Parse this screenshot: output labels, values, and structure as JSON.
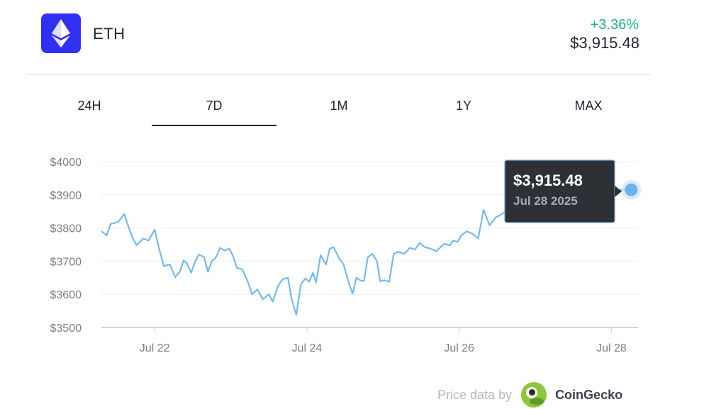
{
  "asset": {
    "symbol": "ETH",
    "logo_icon": "ethereum-icon",
    "change": "+3.36%",
    "price": "$3,915.48",
    "colors": {
      "logo_bg": "#2f30f0",
      "positive": "#1db082",
      "line": "#79b8e8"
    }
  },
  "tabs": [
    {
      "label": "24H",
      "active": false
    },
    {
      "label": "7D",
      "active": true
    },
    {
      "label": "1M",
      "active": false
    },
    {
      "label": "1Y",
      "active": false
    },
    {
      "label": "MAX",
      "active": false
    }
  ],
  "tooltip": {
    "price": "$3,915.48",
    "date": "Jul 28 2025"
  },
  "footer": {
    "credit": "Price data by",
    "brand": "CoinGecko",
    "brand_icon": "coingecko-icon"
  },
  "chart_data": {
    "type": "line",
    "grid": true,
    "ylim": [
      3500,
      4000
    ],
    "y_ticks": [
      "$4000",
      "$3900",
      "$3800",
      "$3700",
      "$3600",
      "$3500"
    ],
    "x_ticks": [
      "Jul 22",
      "Jul 24",
      "Jul 26",
      "Jul 28"
    ],
    "x_tick_days": [
      1,
      3,
      5,
      7
    ],
    "xlim": [
      0.3,
      7.35
    ],
    "series": [
      {
        "x": [
          0.3,
          0.37,
          0.42,
          0.52,
          0.6,
          0.65,
          0.7,
          0.76,
          0.85,
          0.92,
          1.0,
          1.05,
          1.12,
          1.2,
          1.27,
          1.33,
          1.38,
          1.42,
          1.48,
          1.52,
          1.58,
          1.65,
          1.7,
          1.75,
          1.8,
          1.86,
          1.92,
          1.98,
          2.03,
          2.08,
          2.15,
          2.22,
          2.28,
          2.35,
          2.42,
          2.5,
          2.55,
          2.62,
          2.68,
          2.75,
          2.8,
          2.86,
          2.92,
          2.98,
          3.03,
          3.08,
          3.12,
          3.18,
          3.25,
          3.3,
          3.35,
          3.42,
          3.48,
          3.55,
          3.6,
          3.65,
          3.7,
          3.75,
          3.8,
          3.86,
          3.92,
          3.96,
          4.02,
          4.08,
          4.14,
          4.2,
          4.28,
          4.35,
          4.42,
          4.48,
          4.55,
          4.62,
          4.7,
          4.8,
          4.88,
          4.92,
          4.98,
          5.03,
          5.1,
          5.18,
          5.25,
          5.32,
          5.4,
          5.48,
          5.55,
          5.62,
          5.7,
          5.8,
          5.9,
          5.98,
          6.05,
          6.12,
          6.2,
          6.28,
          6.36,
          6.45,
          6.52,
          6.56,
          6.6,
          6.65,
          6.7,
          6.78,
          6.86,
          6.94,
          7.0,
          7.05,
          7.1,
          7.15,
          7.2,
          7.26
        ],
        "y": [
          3790,
          3778,
          3812,
          3818,
          3842,
          3808,
          3775,
          3748,
          3768,
          3762,
          3795,
          3745,
          3685,
          3690,
          3652,
          3668,
          3702,
          3695,
          3665,
          3692,
          3720,
          3712,
          3668,
          3700,
          3710,
          3740,
          3732,
          3738,
          3715,
          3680,
          3675,
          3640,
          3600,
          3615,
          3585,
          3600,
          3578,
          3625,
          3645,
          3650,
          3585,
          3538,
          3630,
          3648,
          3638,
          3665,
          3635,
          3718,
          3690,
          3738,
          3742,
          3710,
          3690,
          3635,
          3602,
          3650,
          3642,
          3640,
          3712,
          3722,
          3700,
          3640,
          3642,
          3638,
          3722,
          3728,
          3722,
          3740,
          3735,
          3755,
          3742,
          3738,
          3730,
          3752,
          3748,
          3762,
          3758,
          3778,
          3790,
          3782,
          3768,
          3855,
          3808,
          3832,
          3840,
          3852,
          3842,
          3878,
          3855,
          3900,
          3888,
          3915,
          3920,
          3915,
          3918,
          3916,
          3914,
          3915,
          3915,
          3915,
          3915,
          3915,
          3915,
          3915,
          3915,
          3915,
          3915,
          3915,
          3915,
          3915
        ]
      }
    ]
  }
}
